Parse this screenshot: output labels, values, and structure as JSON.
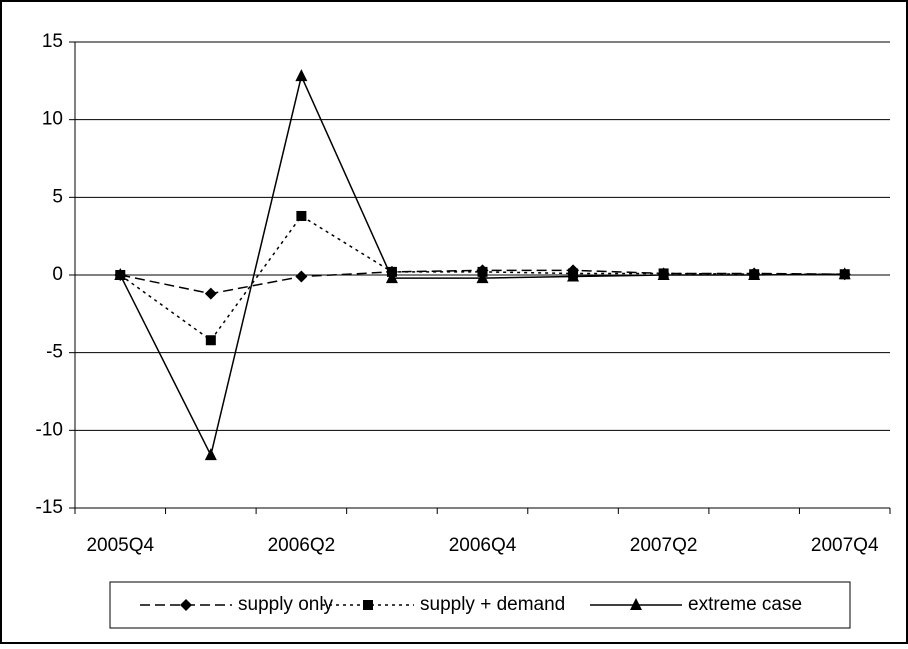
{
  "chart_data": {
    "type": "line",
    "categories": [
      "2005Q4",
      null,
      "2006Q2",
      null,
      "2006Q4",
      null,
      "2007Q2",
      null,
      "2007Q4"
    ],
    "series": [
      {
        "name": "supply only",
        "color": "#000000",
        "dash": "dashed",
        "marker": "diamond",
        "values": [
          0,
          -1.2,
          -0.1,
          0.2,
          0.3,
          0.3,
          0.1,
          0.1,
          0.05
        ]
      },
      {
        "name": "supply + demand",
        "color": "#000000",
        "dash": "dotted",
        "marker": "square",
        "values": [
          0,
          -4.2,
          3.8,
          0.2,
          0.2,
          0.1,
          0.1,
          0.05,
          0.05
        ]
      },
      {
        "name": "extreme case",
        "color": "#000000",
        "dash": "solid",
        "marker": "triangle",
        "values": [
          0,
          -11.6,
          12.8,
          -0.2,
          -0.2,
          -0.1,
          0,
          0,
          0.05
        ]
      }
    ],
    "ylim": [
      -15,
      15
    ],
    "yticks": [
      -15,
      -10,
      -5,
      0,
      5,
      10,
      15
    ],
    "grid": true,
    "legend": "bottom"
  }
}
